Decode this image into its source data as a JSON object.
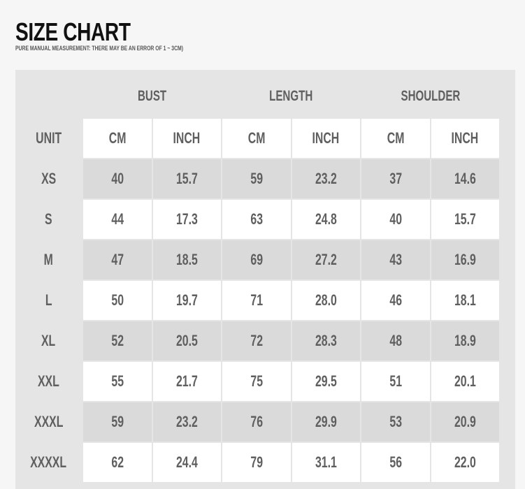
{
  "title": "SIZE CHART",
  "subtitle": "PURE MANUAL MEASUREMENT: THERE MAY BE AN ERROR OF 1 ~ 3CM)",
  "groups": [
    "BUST",
    "LENGTH",
    "SHOULDER"
  ],
  "unit_label": "UNIT",
  "units": [
    "CM",
    "INCH",
    "CM",
    "INCH",
    "CM",
    "INCH"
  ],
  "rows": [
    {
      "size": "XS",
      "values": [
        "40",
        "15.7",
        "59",
        "23.2",
        "37",
        "14.6"
      ]
    },
    {
      "size": "S",
      "values": [
        "44",
        "17.3",
        "63",
        "24.8",
        "40",
        "15.7"
      ]
    },
    {
      "size": "M",
      "values": [
        "47",
        "18.5",
        "69",
        "27.2",
        "43",
        "16.9"
      ]
    },
    {
      "size": "L",
      "values": [
        "50",
        "19.7",
        "71",
        "28.0",
        "46",
        "18.1"
      ]
    },
    {
      "size": "XL",
      "values": [
        "52",
        "20.5",
        "72",
        "28.3",
        "48",
        "18.9"
      ]
    },
    {
      "size": "XXL",
      "values": [
        "55",
        "21.7",
        "75",
        "29.5",
        "51",
        "20.1"
      ]
    },
    {
      "size": "XXXL",
      "values": [
        "59",
        "23.2",
        "76",
        "29.9",
        "53",
        "20.9"
      ]
    },
    {
      "size": "XXXXL",
      "values": [
        "62",
        "24.4",
        "79",
        "31.1",
        "56",
        "22.0"
      ]
    }
  ],
  "colors": {
    "row_shaded": "#dadada",
    "row_plain": "#ffffff",
    "panel": "#e5e5e5",
    "text": "#5f5f5f"
  }
}
